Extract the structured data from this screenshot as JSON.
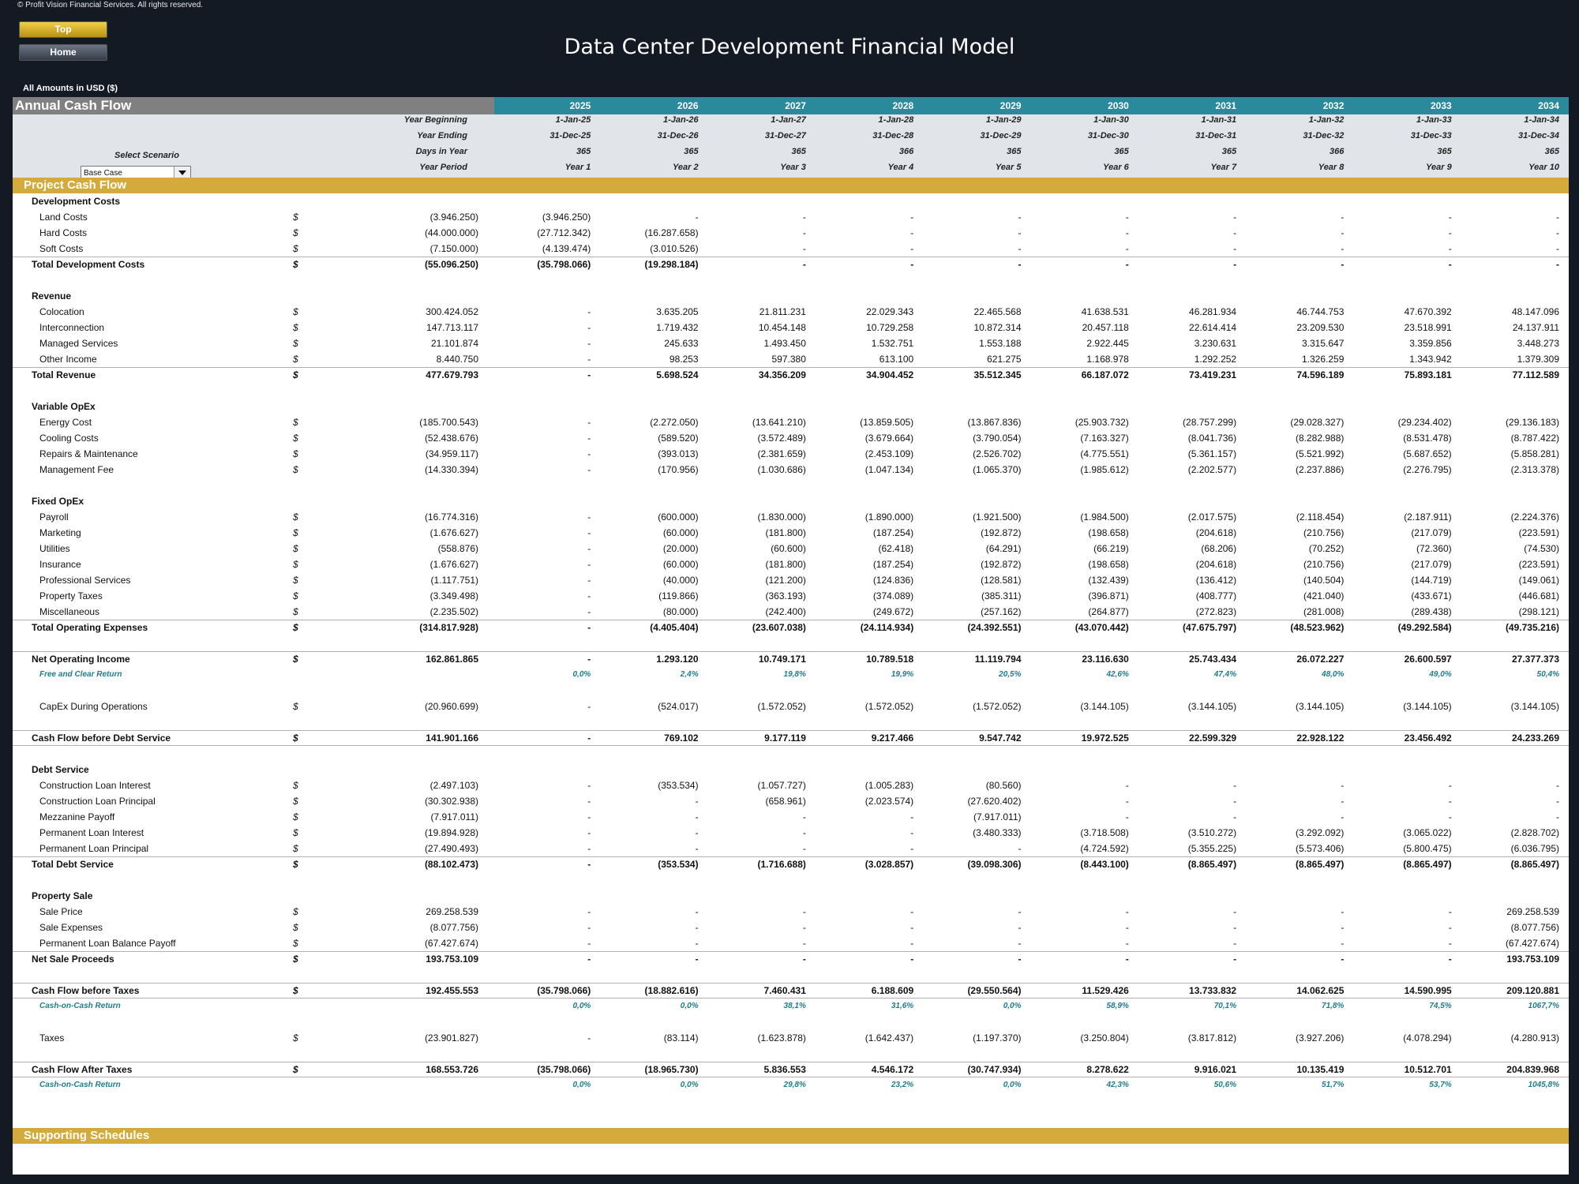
{
  "copyright": "© Profit Vision Financial Services. All rights reserved.",
  "nav": {
    "top_label": "Top",
    "home_label": "Home"
  },
  "title": "Data Center Development Financial Model",
  "amounts_label": "All Amounts in  USD ($)",
  "section_header": "Annual Cash Flow",
  "years": [
    "2025",
    "2026",
    "2027",
    "2028",
    "2029",
    "2030",
    "2031",
    "2032",
    "2033",
    "2034"
  ],
  "date_rows": [
    {
      "label": "Year Beginning",
      "values": [
        "1-Jan-25",
        "1-Jan-26",
        "1-Jan-27",
        "1-Jan-28",
        "1-Jan-29",
        "1-Jan-30",
        "1-Jan-31",
        "1-Jan-32",
        "1-Jan-33",
        "1-Jan-34"
      ]
    },
    {
      "label": "Year Ending",
      "values": [
        "31-Dec-25",
        "31-Dec-26",
        "31-Dec-27",
        "31-Dec-28",
        "31-Dec-29",
        "31-Dec-30",
        "31-Dec-31",
        "31-Dec-32",
        "31-Dec-33",
        "31-Dec-34"
      ]
    },
    {
      "label": "Days in Year",
      "values": [
        "365",
        "365",
        "365",
        "366",
        "365",
        "365",
        "365",
        "366",
        "365",
        "365"
      ]
    },
    {
      "label": "Year Period",
      "values": [
        "Year 1",
        "Year 2",
        "Year 3",
        "Year 4",
        "Year 5",
        "Year 6",
        "Year 7",
        "Year 8",
        "Year 9",
        "Year 10"
      ]
    }
  ],
  "scenario": {
    "label": "Select Scenario",
    "value": "Base Case"
  },
  "project_cash_flow_title": "Project Cash Flow",
  "supporting_schedules_title": "Supporting Schedules",
  "rows": [
    {
      "type": "header",
      "label": "Development Costs"
    },
    {
      "type": "sub",
      "label": "Land Costs",
      "cur": "$",
      "total": "(3.946.250)",
      "values": [
        "(3.946.250)",
        "-",
        "-",
        "-",
        "-",
        "-",
        "-",
        "-",
        "-",
        "-"
      ]
    },
    {
      "type": "sub",
      "label": "Hard Costs",
      "cur": "$",
      "total": "(44.000.000)",
      "values": [
        "(27.712.342)",
        "(16.287.658)",
        "-",
        "-",
        "-",
        "-",
        "-",
        "-",
        "-",
        "-"
      ]
    },
    {
      "type": "sub",
      "label": "Soft Costs",
      "cur": "$",
      "total": "(7.150.000)",
      "values": [
        "(4.139.474)",
        "(3.010.526)",
        "-",
        "-",
        "-",
        "-",
        "-",
        "-",
        "-",
        "-"
      ]
    },
    {
      "type": "total",
      "label": "Total Development Costs",
      "cur": "$",
      "total": "(55.096.250)",
      "values": [
        "(35.798.066)",
        "(19.298.184)",
        "-",
        "-",
        "-",
        "-",
        "-",
        "-",
        "-",
        "-"
      ]
    },
    {
      "type": "blank"
    },
    {
      "type": "header",
      "label": "Revenue"
    },
    {
      "type": "sub",
      "label": "Colocation",
      "cur": "$",
      "total": "300.424.052",
      "values": [
        "-",
        "3.635.205",
        "21.811.231",
        "22.029.343",
        "22.465.568",
        "41.638.531",
        "46.281.934",
        "46.744.753",
        "47.670.392",
        "48.147.096"
      ]
    },
    {
      "type": "sub",
      "label": "Interconnection",
      "cur": "$",
      "total": "147.713.117",
      "values": [
        "-",
        "1.719.432",
        "10.454.148",
        "10.729.258",
        "10.872.314",
        "20.457.118",
        "22.614.414",
        "23.209.530",
        "23.518.991",
        "24.137.911"
      ]
    },
    {
      "type": "sub",
      "label": "Managed Services",
      "cur": "$",
      "total": "21.101.874",
      "values": [
        "-",
        "245.633",
        "1.493.450",
        "1.532.751",
        "1.553.188",
        "2.922.445",
        "3.230.631",
        "3.315.647",
        "3.359.856",
        "3.448.273"
      ]
    },
    {
      "type": "sub",
      "label": "Other Income",
      "cur": "$",
      "total": "8.440.750",
      "values": [
        "-",
        "98.253",
        "597.380",
        "613.100",
        "621.275",
        "1.168.978",
        "1.292.252",
        "1.326.259",
        "1.343.942",
        "1.379.309"
      ]
    },
    {
      "type": "total",
      "label": "Total Revenue",
      "cur": "$",
      "total": "477.679.793",
      "values": [
        "-",
        "5.698.524",
        "34.356.209",
        "34.904.452",
        "35.512.345",
        "66.187.072",
        "73.419.231",
        "74.596.189",
        "75.893.181",
        "77.112.589"
      ]
    },
    {
      "type": "blank"
    },
    {
      "type": "header",
      "label": "Variable OpEx"
    },
    {
      "type": "sub",
      "label": "Energy Cost",
      "cur": "$",
      "total": "(185.700.543)",
      "values": [
        "-",
        "(2.272.050)",
        "(13.641.210)",
        "(13.859.505)",
        "(13.867.836)",
        "(25.903.732)",
        "(28.757.299)",
        "(29.028.327)",
        "(29.234.402)",
        "(29.136.183)"
      ]
    },
    {
      "type": "sub",
      "label": "Cooling Costs",
      "cur": "$",
      "total": "(52.438.676)",
      "values": [
        "-",
        "(589.520)",
        "(3.572.489)",
        "(3.679.664)",
        "(3.790.054)",
        "(7.163.327)",
        "(8.041.736)",
        "(8.282.988)",
        "(8.531.478)",
        "(8.787.422)"
      ]
    },
    {
      "type": "sub",
      "label": "Repairs & Maintenance",
      "cur": "$",
      "total": "(34.959.117)",
      "values": [
        "-",
        "(393.013)",
        "(2.381.659)",
        "(2.453.109)",
        "(2.526.702)",
        "(4.775.551)",
        "(5.361.157)",
        "(5.521.992)",
        "(5.687.652)",
        "(5.858.281)"
      ]
    },
    {
      "type": "sub",
      "label": "Management Fee",
      "cur": "$",
      "total": "(14.330.394)",
      "values": [
        "-",
        "(170.956)",
        "(1.030.686)",
        "(1.047.134)",
        "(1.065.370)",
        "(1.985.612)",
        "(2.202.577)",
        "(2.237.886)",
        "(2.276.795)",
        "(2.313.378)"
      ]
    },
    {
      "type": "blank"
    },
    {
      "type": "header",
      "label": "Fixed OpEx"
    },
    {
      "type": "sub",
      "label": "Payroll",
      "cur": "$",
      "total": "(16.774.316)",
      "values": [
        "-",
        "(600.000)",
        "(1.830.000)",
        "(1.890.000)",
        "(1.921.500)",
        "(1.984.500)",
        "(2.017.575)",
        "(2.118.454)",
        "(2.187.911)",
        "(2.224.376)"
      ]
    },
    {
      "type": "sub",
      "label": "Marketing",
      "cur": "$",
      "total": "(1.676.627)",
      "values": [
        "-",
        "(60.000)",
        "(181.800)",
        "(187.254)",
        "(192.872)",
        "(198.658)",
        "(204.618)",
        "(210.756)",
        "(217.079)",
        "(223.591)"
      ]
    },
    {
      "type": "sub",
      "label": "Utilities",
      "cur": "$",
      "total": "(558.876)",
      "values": [
        "-",
        "(20.000)",
        "(60.600)",
        "(62.418)",
        "(64.291)",
        "(66.219)",
        "(68.206)",
        "(70.252)",
        "(72.360)",
        "(74.530)"
      ]
    },
    {
      "type": "sub",
      "label": "Insurance",
      "cur": "$",
      "total": "(1.676.627)",
      "values": [
        "-",
        "(60.000)",
        "(181.800)",
        "(187.254)",
        "(192.872)",
        "(198.658)",
        "(204.618)",
        "(210.756)",
        "(217.079)",
        "(223.591)"
      ]
    },
    {
      "type": "sub",
      "label": "Professional Services",
      "cur": "$",
      "total": "(1.117.751)",
      "values": [
        "-",
        "(40.000)",
        "(121.200)",
        "(124.836)",
        "(128.581)",
        "(132.439)",
        "(136.412)",
        "(140.504)",
        "(144.719)",
        "(149.061)"
      ]
    },
    {
      "type": "sub",
      "label": "Property Taxes",
      "cur": "$",
      "total": "(3.349.498)",
      "values": [
        "-",
        "(119.866)",
        "(363.193)",
        "(374.089)",
        "(385.311)",
        "(396.871)",
        "(408.777)",
        "(421.040)",
        "(433.671)",
        "(446.681)"
      ]
    },
    {
      "type": "sub",
      "label": "Miscellaneous",
      "cur": "$",
      "total": "(2.235.502)",
      "values": [
        "-",
        "(80.000)",
        "(242.400)",
        "(249.672)",
        "(257.162)",
        "(264.877)",
        "(272.823)",
        "(281.008)",
        "(289.438)",
        "(298.121)"
      ]
    },
    {
      "type": "total",
      "label": "Total Operating Expenses",
      "cur": "$",
      "total": "(314.817.928)",
      "values": [
        "-",
        "(4.405.404)",
        "(23.607.038)",
        "(24.114.934)",
        "(24.392.551)",
        "(43.070.442)",
        "(47.675.797)",
        "(48.523.962)",
        "(49.292.584)",
        "(49.735.216)"
      ]
    },
    {
      "type": "blank"
    },
    {
      "type": "total",
      "label": "Net Operating Income",
      "cur": "$",
      "total": "162.861.865",
      "values": [
        "-",
        "1.293.120",
        "10.749.171",
        "10.789.518",
        "11.119.794",
        "23.116.630",
        "25.743.434",
        "26.072.227",
        "26.600.597",
        "27.377.373"
      ]
    },
    {
      "type": "pct",
      "label": "Free and Clear Return",
      "values": [
        "0,0%",
        "2,4%",
        "19,8%",
        "19,9%",
        "20,5%",
        "42,6%",
        "47,4%",
        "48,0%",
        "49,0%",
        "50,4%"
      ]
    },
    {
      "type": "blank"
    },
    {
      "type": "sub",
      "label": "CapEx During Operations",
      "cur": "$",
      "total": "(20.960.699)",
      "values": [
        "-",
        "(524.017)",
        "(1.572.052)",
        "(1.572.052)",
        "(1.572.052)",
        "(3.144.105)",
        "(3.144.105)",
        "(3.144.105)",
        "(3.144.105)",
        "(3.144.105)"
      ]
    },
    {
      "type": "blank"
    },
    {
      "type": "total",
      "under": true,
      "label": "Cash Flow before Debt Service",
      "cur": "$",
      "total": "141.901.166",
      "values": [
        "-",
        "769.102",
        "9.177.119",
        "9.217.466",
        "9.547.742",
        "19.972.525",
        "22.599.329",
        "22.928.122",
        "23.456.492",
        "24.233.269"
      ]
    },
    {
      "type": "blank"
    },
    {
      "type": "header",
      "label": "Debt Service"
    },
    {
      "type": "sub",
      "label": "Construction Loan Interest",
      "cur": "$",
      "total": "(2.497.103)",
      "values": [
        "-",
        "(353.534)",
        "(1.057.727)",
        "(1.005.283)",
        "(80.560)",
        "-",
        "-",
        "-",
        "-",
        "-"
      ]
    },
    {
      "type": "sub",
      "label": "Construction Loan Principal",
      "cur": "$",
      "total": "(30.302.938)",
      "values": [
        "-",
        "-",
        "(658.961)",
        "(2.023.574)",
        "(27.620.402)",
        "-",
        "-",
        "-",
        "-",
        "-"
      ]
    },
    {
      "type": "sub",
      "label": "Mezzanine Payoff",
      "cur": "$",
      "total": "(7.917.011)",
      "values": [
        "-",
        "-",
        "-",
        "-",
        "(7.917.011)",
        "-",
        "-",
        "-",
        "-",
        "-"
      ]
    },
    {
      "type": "sub",
      "label": "Permanent Loan Interest",
      "cur": "$",
      "total": "(19.894.928)",
      "values": [
        "-",
        "-",
        "-",
        "-",
        "(3.480.333)",
        "(3.718.508)",
        "(3.510.272)",
        "(3.292.092)",
        "(3.065.022)",
        "(2.828.702)"
      ]
    },
    {
      "type": "sub",
      "label": "Permanent Loan Principal",
      "cur": "$",
      "total": "(27.490.493)",
      "values": [
        "-",
        "-",
        "-",
        "-",
        "-",
        "(4.724.592)",
        "(5.355.225)",
        "(5.573.406)",
        "(5.800.475)",
        "(6.036.795)"
      ]
    },
    {
      "type": "total",
      "label": "Total Debt Service",
      "cur": "$",
      "total": "(88.102.473)",
      "values": [
        "-",
        "(353.534)",
        "(1.716.688)",
        "(3.028.857)",
        "(39.098.306)",
        "(8.443.100)",
        "(8.865.497)",
        "(8.865.497)",
        "(8.865.497)",
        "(8.865.497)"
      ]
    },
    {
      "type": "blank"
    },
    {
      "type": "header",
      "label": "Property Sale"
    },
    {
      "type": "sub",
      "label": "Sale Price",
      "cur": "$",
      "total": "269.258.539",
      "values": [
        "-",
        "-",
        "-",
        "-",
        "-",
        "-",
        "-",
        "-",
        "-",
        "269.258.539"
      ]
    },
    {
      "type": "sub",
      "label": "Sale Expenses",
      "cur": "$",
      "total": "(8.077.756)",
      "values": [
        "-",
        "-",
        "-",
        "-",
        "-",
        "-",
        "-",
        "-",
        "-",
        "(8.077.756)"
      ]
    },
    {
      "type": "sub",
      "label": "Permanent Loan Balance Payoff",
      "cur": "$",
      "total": "(67.427.674)",
      "values": [
        "-",
        "-",
        "-",
        "-",
        "-",
        "-",
        "-",
        "-",
        "-",
        "(67.427.674)"
      ]
    },
    {
      "type": "total",
      "label": "Net Sale Proceeds",
      "cur": "$",
      "total": "193.753.109",
      "values": [
        "-",
        "-",
        "-",
        "-",
        "-",
        "-",
        "-",
        "-",
        "-",
        "193.753.109"
      ]
    },
    {
      "type": "blank"
    },
    {
      "type": "total",
      "under": true,
      "label": "Cash Flow before Taxes",
      "cur": "$",
      "total": "192.455.553",
      "values": [
        "(35.798.066)",
        "(18.882.616)",
        "7.460.431",
        "6.188.609",
        "(29.550.564)",
        "11.529.426",
        "13.733.832",
        "14.062.625",
        "14.590.995",
        "209.120.881"
      ]
    },
    {
      "type": "pct",
      "label": "Cash-on-Cash Return",
      "values": [
        "0,0%",
        "0,0%",
        "38,1%",
        "31,6%",
        "0,0%",
        "58,9%",
        "70,1%",
        "71,8%",
        "74,5%",
        "1067,7%"
      ]
    },
    {
      "type": "blank"
    },
    {
      "type": "sub",
      "label": "Taxes",
      "cur": "$",
      "total": "(23.901.827)",
      "values": [
        "-",
        "(83.114)",
        "(1.623.878)",
        "(1.642.437)",
        "(1.197.370)",
        "(3.250.804)",
        "(3.817.812)",
        "(3.927.206)",
        "(4.078.294)",
        "(4.280.913)"
      ]
    },
    {
      "type": "blank"
    },
    {
      "type": "total",
      "under": true,
      "label": "Cash Flow After Taxes",
      "cur": "$",
      "total": "168.553.726",
      "values": [
        "(35.798.066)",
        "(18.965.730)",
        "5.836.553",
        "4.546.172",
        "(30.747.934)",
        "8.278.622",
        "9.916.021",
        "10.135.419",
        "10.512.701",
        "204.839.968"
      ]
    },
    {
      "type": "pct",
      "label": "Cash-on-Cash Return",
      "values": [
        "0,0%",
        "0,0%",
        "29,8%",
        "23,2%",
        "0,0%",
        "42,3%",
        "50,6%",
        "51,7%",
        "53,7%",
        "1045,8%"
      ]
    }
  ]
}
